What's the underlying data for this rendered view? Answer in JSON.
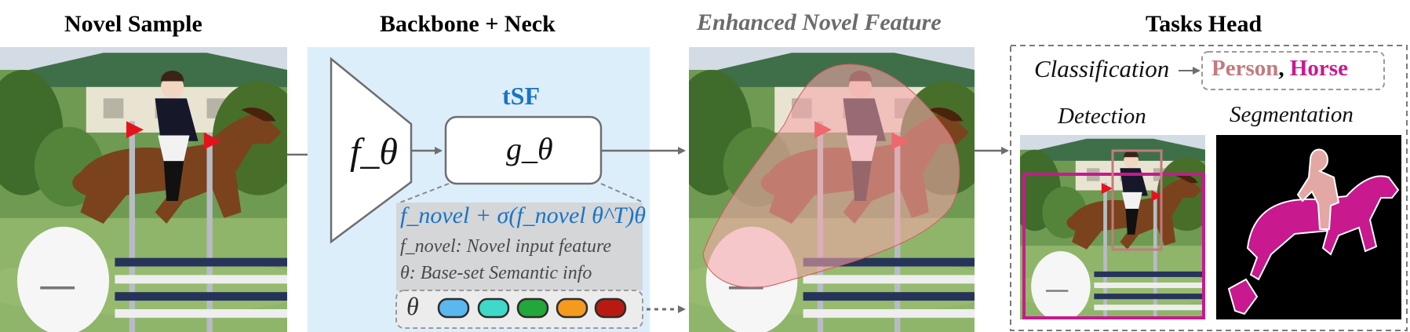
{
  "columns": {
    "novel_sample": "Novel Sample",
    "backbone_neck": "Backbone + Neck",
    "enhanced_feature": "Enhanced Novel Feature",
    "tasks_head": "Tasks Head"
  },
  "tsf": {
    "label": "tSF",
    "formula": "f_novel + σ(f_novel θ^T)θ",
    "legend_novel": "f_novel: Novel input feature",
    "legend_theta": "θ: Base-set Semantic info",
    "theta_label": "θ",
    "theta_token_colors": [
      "#5ab7ef",
      "#3fd9c9",
      "#23a63a",
      "#f39a1f",
      "#b81a12"
    ]
  },
  "blocks": {
    "f_theta": "f_θ",
    "g_theta": "g_θ"
  },
  "tasks": {
    "classification_label": "Classification",
    "class_person": "Person",
    "class_separator": ",",
    "class_horse": "Horse",
    "detection_label": "Detection",
    "segmentation_label": "Segmentation"
  },
  "colors": {
    "person": "#c27b80",
    "horse": "#c8198f",
    "tsf_blue": "#1a74c6",
    "panel_bg": "#ddeefb"
  }
}
